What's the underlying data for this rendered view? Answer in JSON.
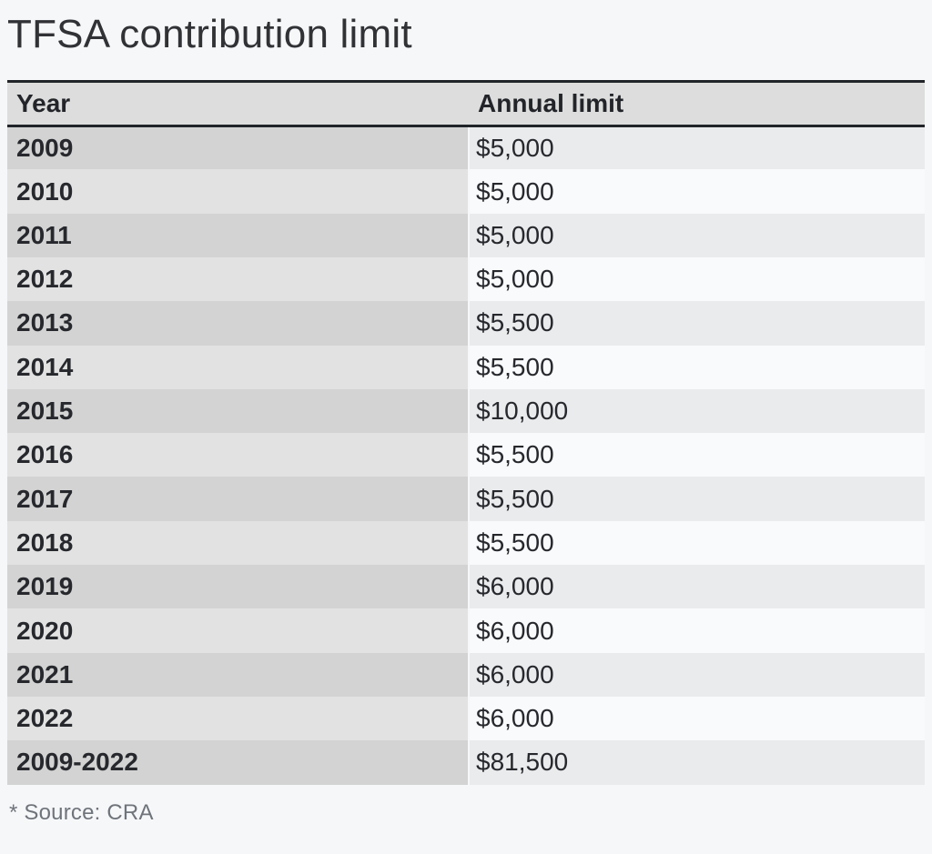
{
  "title": "TFSA contribution limit",
  "table": {
    "columns": {
      "year": "Year",
      "limit": "Annual limit"
    },
    "rows": [
      {
        "year": "2009",
        "limit": "$5,000"
      },
      {
        "year": "2010",
        "limit": "$5,000"
      },
      {
        "year": "2011",
        "limit": "$5,000"
      },
      {
        "year": "2012",
        "limit": "$5,000"
      },
      {
        "year": "2013",
        "limit": "$5,500"
      },
      {
        "year": "2014",
        "limit": "$5,500"
      },
      {
        "year": "2015",
        "limit": "$10,000"
      },
      {
        "year": "2016",
        "limit": "$5,500"
      },
      {
        "year": "2017",
        "limit": "$5,500"
      },
      {
        "year": "2018",
        "limit": "$5,500"
      },
      {
        "year": "2019",
        "limit": "$6,000"
      },
      {
        "year": "2020",
        "limit": "$6,000"
      },
      {
        "year": "2021",
        "limit": "$6,000"
      },
      {
        "year": "2022",
        "limit": "$6,000"
      },
      {
        "year": "2009-2022",
        "limit": "$81,500"
      }
    ]
  },
  "footer": {
    "note": "* Source: CRA"
  },
  "colors": {
    "page_bg": "#f6f7f9",
    "header_bg": "#dcdddc",
    "row_odd_year_bg": "#d2d3d2",
    "row_odd_limit_bg": "#eaebec",
    "row_even_year_bg": "#e1e2e1",
    "row_even_limit_bg": "#f9fafb",
    "border_dark": "#212429",
    "text_dark": "#26282d",
    "muted_text": "#6f747b"
  },
  "chart_data": {
    "type": "table",
    "title": "TFSA contribution limit",
    "categories": [
      "2009",
      "2010",
      "2011",
      "2012",
      "2013",
      "2014",
      "2015",
      "2016",
      "2017",
      "2018",
      "2019",
      "2020",
      "2021",
      "2022",
      "2009-2022"
    ],
    "values": [
      5000,
      5000,
      5000,
      5000,
      5500,
      5500,
      10000,
      5500,
      5500,
      5500,
      6000,
      6000,
      6000,
      6000,
      81500
    ],
    "xlabel": "Year",
    "ylabel": "Annual limit"
  }
}
